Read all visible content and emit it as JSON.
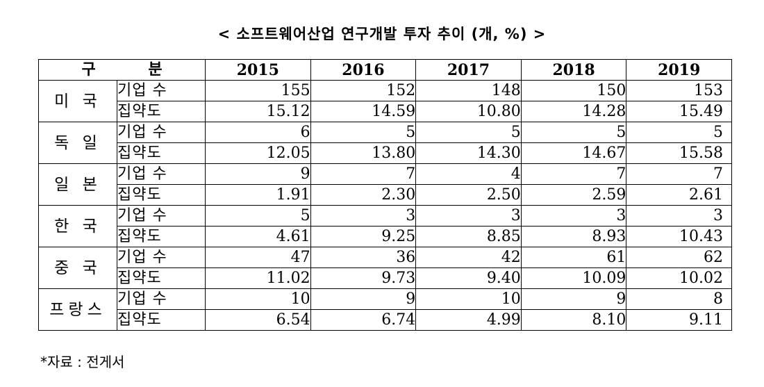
{
  "title": "< 소프트웨어산업 연구개발 투자 추이 (개, %) >",
  "table": {
    "header": {
      "category": "구 분",
      "years": [
        "2015",
        "2016",
        "2017",
        "2018",
        "2019"
      ]
    },
    "rows": [
      {
        "country": "미 국",
        "metric": "기업 수",
        "values": [
          "155",
          "152",
          "148",
          "150",
          "153"
        ]
      },
      {
        "country": "미 국",
        "metric": "집약도",
        "values": [
          "15.12",
          "14.59",
          "10.80",
          "14.28",
          "15.49"
        ]
      },
      {
        "country": "독 일",
        "metric": "기업 수",
        "values": [
          "6",
          "5",
          "5",
          "5",
          "5"
        ]
      },
      {
        "country": "독 일",
        "metric": "집약도",
        "values": [
          "12.05",
          "13.80",
          "14.30",
          "14.67",
          "15.58"
        ]
      },
      {
        "country": "일 본",
        "metric": "기업 수",
        "values": [
          "9",
          "7",
          "4",
          "7",
          "7"
        ]
      },
      {
        "country": "일 본",
        "metric": "집약도",
        "values": [
          "1.91",
          "2.30",
          "2.50",
          "2.59",
          "2.61"
        ]
      },
      {
        "country": "한 국",
        "metric": "기업 수",
        "values": [
          "5",
          "3",
          "3",
          "3",
          "3"
        ]
      },
      {
        "country": "한 국",
        "metric": "집약도",
        "values": [
          "4.61",
          "9.25",
          "8.85",
          "8.93",
          "10.43"
        ]
      },
      {
        "country": "중 국",
        "metric": "기업 수",
        "values": [
          "47",
          "36",
          "42",
          "61",
          "62"
        ]
      },
      {
        "country": "중 국",
        "metric": "집약도",
        "values": [
          "11.02",
          "9.73",
          "9.40",
          "10.09",
          "10.02"
        ]
      },
      {
        "country": "프랑스",
        "metric": "기업 수",
        "values": [
          "10",
          "9",
          "10",
          "9",
          "8"
        ]
      },
      {
        "country": "프랑스",
        "metric": "집약도",
        "values": [
          "6.54",
          "6.74",
          "4.99",
          "8.10",
          "9.11"
        ]
      }
    ]
  },
  "source": "*자료 : 전게서"
}
